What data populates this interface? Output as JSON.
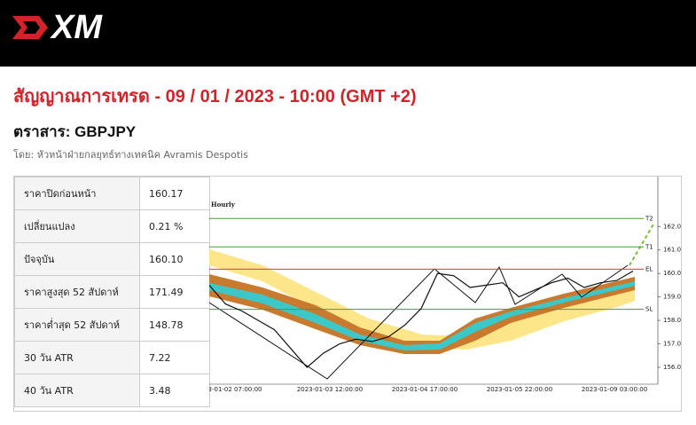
{
  "header": {
    "logo": "XM"
  },
  "title": "สัญญาณการเทรด - 09 / 01 / 2023 - 10:00 (GMT +2)",
  "instrument": "ตราสาร: GBPJPY",
  "byline": "โดย: หัวหน้าฝ่ายกลยุทธ์ทางเทคนิค Avramis Despotis",
  "table": {
    "rows": [
      [
        "ราคาปิดก่อนหน้า",
        "160.17"
      ],
      [
        "เปลี่ยนแปลง",
        "0.21 %"
      ],
      [
        "ปัจจุบัน",
        "160.10"
      ],
      [
        "ราคาสูงสุด 52 สัปดาห์",
        "171.49"
      ],
      [
        "ราคาต่ำสุด 52 สัปดาห์",
        "148.78"
      ],
      [
        "30 วัน ATR",
        "7.22"
      ],
      [
        "40 วัน ATR",
        "3.48"
      ]
    ]
  },
  "chart_data": {
    "type": "line",
    "subtitle": "Hourly",
    "color": "#111111",
    "values": [
      159.5,
      158.7,
      158.4,
      158.0,
      157.6,
      156.8,
      156.0,
      156.6,
      157.0,
      157.2,
      157.1,
      157.3,
      157.8,
      158.5,
      160.0,
      159.9,
      159.4,
      159.5,
      159.6,
      159.0,
      159.3,
      159.6,
      159.8,
      159.4,
      159.6,
      159.7,
      160.1
    ],
    "ylim": [
      155.28,
      164.09
    ],
    "yticks": [
      {
        "value": 156,
        "label": "156.00"
      },
      {
        "value": 157,
        "label": "157.00"
      },
      {
        "value": 158,
        "label": "158.00"
      },
      {
        "value": 159,
        "label": "159.00"
      },
      {
        "value": 160,
        "label": "160.00"
      },
      {
        "value": 161,
        "label": "161.00"
      },
      {
        "value": 162,
        "label": "162.00"
      }
    ],
    "xtick_labels": [
      "3-01-02 07:00:00",
      "2023-01-03 12:00:00",
      "2023-01-04 17:00:00",
      "2023-01-05 22:00:00",
      "2023-01-09 03:00:00"
    ],
    "levels": [
      {
        "name": "T2",
        "value": 162.34,
        "color": "#4a9a3a"
      },
      {
        "name": "T1",
        "value": 161.13,
        "color": "#4a9a3a"
      },
      {
        "name": "EL",
        "value": 160.18,
        "color": "#d83a3a"
      },
      {
        "name": "SL",
        "value": 158.47,
        "color": "#4a9a3a"
      }
    ]
  }
}
